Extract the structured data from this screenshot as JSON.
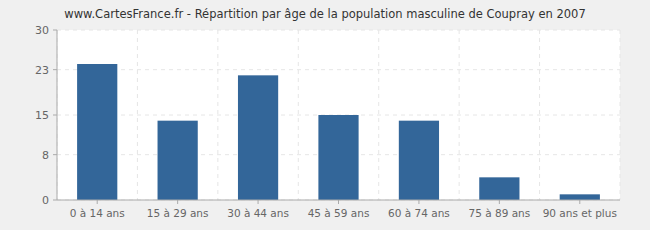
{
  "chart_data": {
    "type": "bar",
    "title": "www.CartesFrance.fr - Répartition par âge de la population masculine de Coupray en 2007",
    "categories": [
      "0 à 14 ans",
      "15 à 29 ans",
      "30 à 44 ans",
      "45 à 59 ans",
      "60 à 74 ans",
      "75 à 89 ans",
      "90 ans et plus"
    ],
    "values": [
      24,
      14,
      22,
      15,
      14,
      4,
      1
    ],
    "color": "#336699",
    "ylim": [
      0,
      30
    ],
    "yticks": [
      0,
      8,
      15,
      23,
      30
    ],
    "grid": true
  }
}
